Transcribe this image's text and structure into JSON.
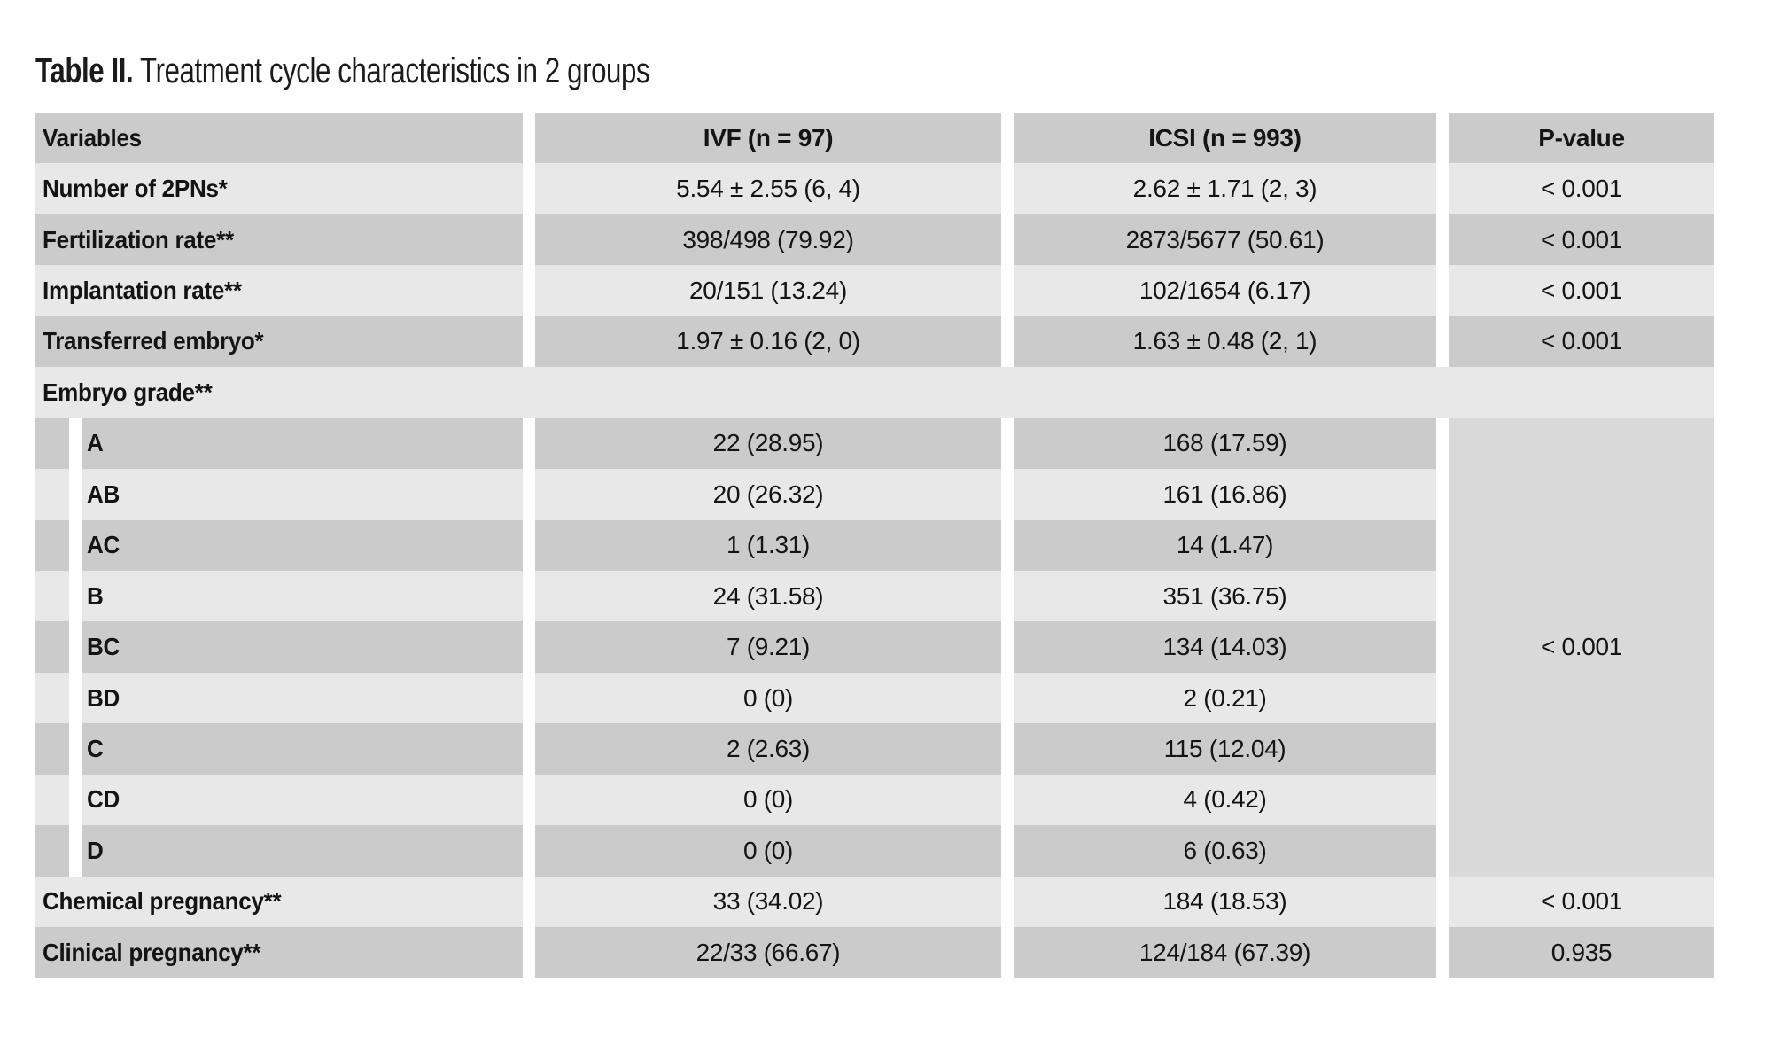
{
  "title": {
    "prefix": "Table II.",
    "text": "Treatment cycle characteristics in 2 groups"
  },
  "table": {
    "headers": {
      "variables": "Variables",
      "ivf": "IVF (n = 97)",
      "icsi": "ICSI (n = 993)",
      "p": "P-value"
    },
    "embryo_grade_p": "< 0.001",
    "rows": [
      {
        "label": "Number of 2PNs*",
        "ivf": "5.54 ± 2.55 (6, 4)",
        "icsi": "2.62 ± 1.71 (2, 3)",
        "p": "< 0.001"
      },
      {
        "label": "Fertilization rate**",
        "ivf": "398/498 (79.92)",
        "icsi": "2873/5677 (50.61)",
        "p": "< 0.001"
      },
      {
        "label": "Implantation rate**",
        "ivf": "20/151 (13.24)",
        "icsi": "102/1654 (6.17)",
        "p": "< 0.001"
      },
      {
        "label": "Transferred embryo*",
        "ivf": "1.97 ± 0.16 (2, 0)",
        "icsi": "1.63 ± 0.48 (2, 1)",
        "p": "< 0.001"
      },
      {
        "label": "Embryo grade**"
      },
      {
        "label": "A",
        "ivf": "22 (28.95)",
        "icsi": "168 (17.59)"
      },
      {
        "label": "AB",
        "ivf": "20 (26.32)",
        "icsi": "161 (16.86)"
      },
      {
        "label": "AC",
        "ivf": "1 (1.31)",
        "icsi": "14 (1.47)"
      },
      {
        "label": "B",
        "ivf": "24 (31.58)",
        "icsi": "351 (36.75)"
      },
      {
        "label": "BC",
        "ivf": "7 (9.21)",
        "icsi": "134 (14.03)"
      },
      {
        "label": "BD",
        "ivf": "0 (0)",
        "icsi": "2 (0.21)"
      },
      {
        "label": "C",
        "ivf": "2 (2.63)",
        "icsi": "115 (12.04)"
      },
      {
        "label": "CD",
        "ivf": "0 (0)",
        "icsi": "4 (0.42)"
      },
      {
        "label": "D",
        "ivf": "0 (0)",
        "icsi": "6 (0.63)"
      },
      {
        "label": "Chemical pregnancy**",
        "ivf": "33 (34.02)",
        "icsi": "184 (18.53)",
        "p": "< 0.001"
      },
      {
        "label": "Clinical pregnancy**",
        "ivf": "22/33 (66.67)",
        "icsi": "124/184 (67.39)",
        "p": "0.935"
      }
    ]
  },
  "colors": {
    "row_dark": "#cbcbcb",
    "row_light": "#e8e8e8",
    "p_merged_cell": "#d9d9d9",
    "page_background": "#ffffff",
    "text": "#141414"
  }
}
